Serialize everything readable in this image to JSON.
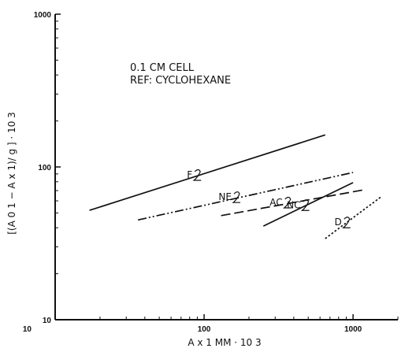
{
  "chart_data": {
    "type": "line",
    "x_scale": "log",
    "y_scale": "log",
    "xlim": [
      10,
      2000
    ],
    "ylim": [
      10,
      1000
    ],
    "x_ticks": [
      {
        "value": 10,
        "label": "10"
      },
      {
        "value": 100,
        "label": "100"
      },
      {
        "value": 1000,
        "label": "1000"
      }
    ],
    "y_ticks": [
      {
        "value": 10,
        "label": "10"
      },
      {
        "value": 100,
        "label": "100"
      },
      {
        "value": 1000,
        "label": "1000"
      }
    ],
    "xlabel": "A x 1 MM · 10 3",
    "ylabel": "[(A 0 1 − A x 1)/ g ] · 10 3",
    "annotation_lines": [
      "0.1 CM CELL",
      "REF: CYCLOHEXANE"
    ],
    "grid": false,
    "series": [
      {
        "name": "F",
        "label": "F",
        "dash": "solid",
        "x": [
          17,
          650
        ],
        "y": [
          52,
          162
        ]
      },
      {
        "name": "NE",
        "label": "NE",
        "dash": "dash-dot-dot",
        "x": [
          36,
          1000
        ],
        "y": [
          45,
          92
        ]
      },
      {
        "name": "AC",
        "label": "AC",
        "dash": "long-dash",
        "x": [
          130,
          1200
        ],
        "y": [
          48,
          71
        ]
      },
      {
        "name": "NC",
        "label": "NC",
        "dash": "solid",
        "x": [
          250,
          1000
        ],
        "y": [
          41,
          79
        ]
      },
      {
        "name": "D",
        "label": "D",
        "dash": "dotted",
        "x": [
          650,
          1550
        ],
        "y": [
          34,
          64
        ]
      }
    ]
  }
}
